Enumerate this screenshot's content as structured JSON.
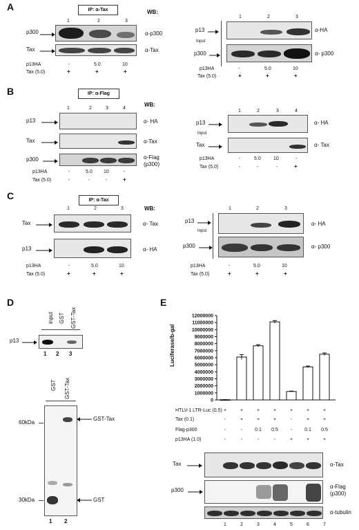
{
  "panel_a": {
    "label": "A",
    "ip": "IP: α-Tax",
    "wb": "WB:",
    "lanes_left": [
      "1",
      "2",
      "3"
    ],
    "lanes_right": [
      "1",
      "2",
      "3"
    ],
    "rows_left": [
      "p300",
      "Tax"
    ],
    "ab_left": [
      "α-p300",
      "α-Tax"
    ],
    "rows_right": [
      "p13",
      "p300"
    ],
    "input": "Input",
    "ab_right": [
      "α-HA",
      "α- p300"
    ],
    "p13ha_label": "p13HA",
    "p13ha": [
      "-",
      "5.0",
      "10"
    ],
    "tax_label": "Tax (5.0)",
    "tax": [
      "+",
      "+",
      "+"
    ]
  },
  "panel_b": {
    "label": "B",
    "ip": "IP: α-Flag",
    "wb": "WB:",
    "lanes_left": [
      "1",
      "2",
      "3",
      "4"
    ],
    "lanes_right": [
      "1",
      "2",
      "3",
      "4"
    ],
    "rows_left": [
      "p13",
      "Tax",
      "p300"
    ],
    "ab_left": [
      "α- HA",
      "α-Tax",
      "α-Flag",
      "(p300)"
    ],
    "rows_right": [
      "p13",
      "Tax"
    ],
    "input": "Input",
    "ab_right": [
      "α- HA",
      "α- Tax"
    ],
    "p13ha_label": "p13HA",
    "p13ha": [
      "-",
      "5.0",
      "10",
      "-"
    ],
    "tax_label": "Tax (5.0)",
    "tax": [
      "-",
      "-",
      "-",
      "+"
    ]
  },
  "panel_c": {
    "label": "C",
    "ip": "IP: α-Tax",
    "wb": "WB:",
    "lanes_left": [
      "1",
      "2",
      "3"
    ],
    "lanes_right": [
      "1",
      "2",
      "3"
    ],
    "rows_left": [
      "Tax",
      "p13"
    ],
    "ab_left": [
      "α- Tax",
      "α- HA"
    ],
    "rows_right": [
      "p13",
      "p300"
    ],
    "input": "Input",
    "ab_right": [
      "α- HA",
      "α- p300"
    ],
    "p13ha_label": "p13HA",
    "p13ha": [
      "-",
      "5.0",
      "10"
    ],
    "tax_label": "Tax (5.0)",
    "tax": [
      "+",
      "+",
      "+"
    ]
  },
  "panel_d": {
    "label": "D",
    "top_headers": [
      "input",
      "GST",
      "GST-Tax"
    ],
    "row_label": "p13",
    "top_lanes": [
      "1",
      "2",
      "3"
    ],
    "bottom_headers": [
      "GST",
      "GST-Tax"
    ],
    "markers": [
      "60kDa",
      "30kDa"
    ],
    "bands": [
      "GST-Tax",
      "GST"
    ],
    "bottom_lanes": [
      "1",
      "2"
    ]
  },
  "panel_e": {
    "label": "E",
    "row_labels": [
      "HTLV-1 LTR-Luc (0.5)",
      "Tax (0.1)",
      "Flag-p300",
      "p13HA (1.0)"
    ],
    "rows": [
      [
        "+",
        "+",
        "+",
        "+",
        "+",
        "+",
        "+"
      ],
      [
        "-",
        "+",
        "+",
        "+",
        "-",
        "+",
        "+"
      ],
      [
        "-",
        "-",
        "0.1",
        "0.5",
        "-",
        "0.1",
        "0.5"
      ],
      [
        "-",
        "-",
        "-",
        "-",
        "+",
        "+",
        "+"
      ]
    ],
    "blot_labels": [
      "Tax",
      "p300"
    ],
    "antibodies": [
      "α-Tax",
      "α-Flag",
      "(p300)",
      "α-tubulin"
    ],
    "lanes": [
      "1",
      "2",
      "3",
      "4",
      "5",
      "6",
      "7"
    ]
  },
  "chart_data": {
    "type": "bar",
    "categories": [
      "1",
      "2",
      "3",
      "4",
      "5",
      "6",
      "7"
    ],
    "values": [
      30000,
      6100000,
      7700000,
      11100000,
      1200000,
      4700000,
      6500000
    ],
    "errors": [
      10000,
      350000,
      150000,
      180000,
      60000,
      120000,
      180000
    ],
    "ylabel": "Luciferase/b-gal",
    "ylim": [
      0,
      12000000
    ],
    "yticks": [
      0,
      1000000,
      2000000,
      3000000,
      4000000,
      5000000,
      6000000,
      7000000,
      8000000,
      9000000,
      10000000,
      11000000,
      12000000
    ],
    "yticklabels": [
      "0",
      "1000000",
      "2000000",
      "3000000",
      "4000000",
      "5000000",
      "6000000",
      "7000000",
      "8000000",
      "9000000",
      "10000000",
      "11000000",
      "12000000"
    ],
    "grid": false
  }
}
